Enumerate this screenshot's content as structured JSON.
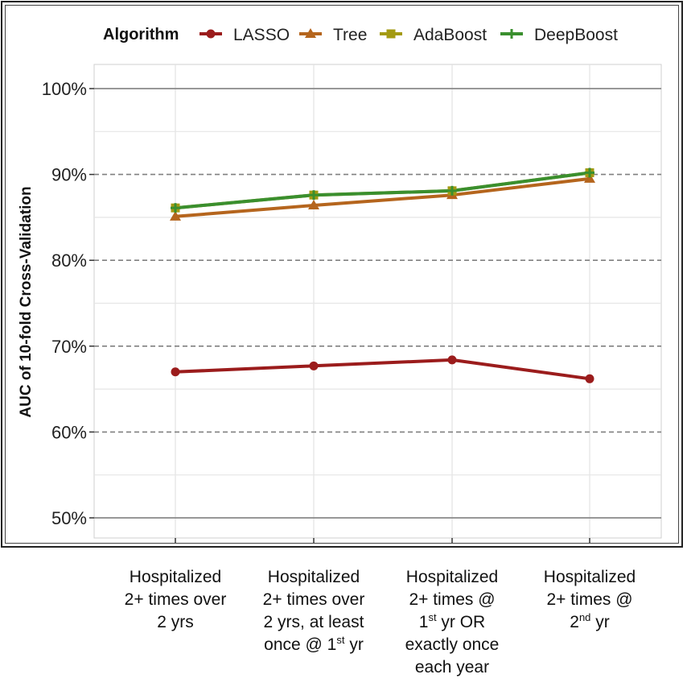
{
  "chart_data": {
    "type": "line",
    "ylabel": "AUC of 10-fold Cross-Validation",
    "ylim": [
      0.5,
      1.0
    ],
    "yticks": [
      0.5,
      0.6,
      0.7,
      0.8,
      0.9,
      1.0
    ],
    "ytick_labels": [
      "50%",
      "60%",
      "70%",
      "80%",
      "90%",
      "100%"
    ],
    "legend": {
      "title": "Algorithm",
      "position": "top"
    },
    "categories": [
      {
        "lines": [
          [
            {
              "t": "Hospitalized"
            }
          ],
          [
            {
              "t": "2+ times over"
            }
          ],
          [
            {
              "t": "2 yrs"
            }
          ]
        ]
      },
      {
        "lines": [
          [
            {
              "t": "Hospitalized"
            }
          ],
          [
            {
              "t": "2+ times over"
            }
          ],
          [
            {
              "t": "2 yrs, at least"
            }
          ],
          [
            {
              "t": "once @ 1"
            },
            {
              "t": "st",
              "sup": true
            },
            {
              "t": " yr"
            }
          ]
        ]
      },
      {
        "lines": [
          [
            {
              "t": "Hospitalized"
            }
          ],
          [
            {
              "t": "2+ times @"
            }
          ],
          [
            {
              "t": "1"
            },
            {
              "t": "st",
              "sup": true
            },
            {
              "t": " yr OR"
            }
          ],
          [
            {
              "t": "exactly once"
            }
          ],
          [
            {
              "t": "each year"
            }
          ]
        ]
      },
      {
        "lines": [
          [
            {
              "t": "Hospitalized"
            }
          ],
          [
            {
              "t": "2+ times @"
            }
          ],
          [
            {
              "t": "2"
            },
            {
              "t": "nd",
              "sup": true
            },
            {
              "t": " yr"
            }
          ]
        ]
      }
    ],
    "series": [
      {
        "name": "LASSO",
        "color": "#9b1c1c",
        "marker": "circle",
        "values": [
          0.67,
          0.677,
          0.684,
          0.662
        ]
      },
      {
        "name": "Tree",
        "color": "#b5651d",
        "marker": "triangle",
        "values": [
          0.851,
          0.864,
          0.876,
          0.895
        ]
      },
      {
        "name": "AdaBoost",
        "color": "#a39a12",
        "marker": "square",
        "values": [
          0.861,
          0.876,
          0.881,
          0.902
        ]
      },
      {
        "name": "DeepBoost",
        "color": "#3a8f2e",
        "marker": "plus",
        "values": [
          0.861,
          0.876,
          0.881,
          0.902
        ]
      }
    ]
  }
}
